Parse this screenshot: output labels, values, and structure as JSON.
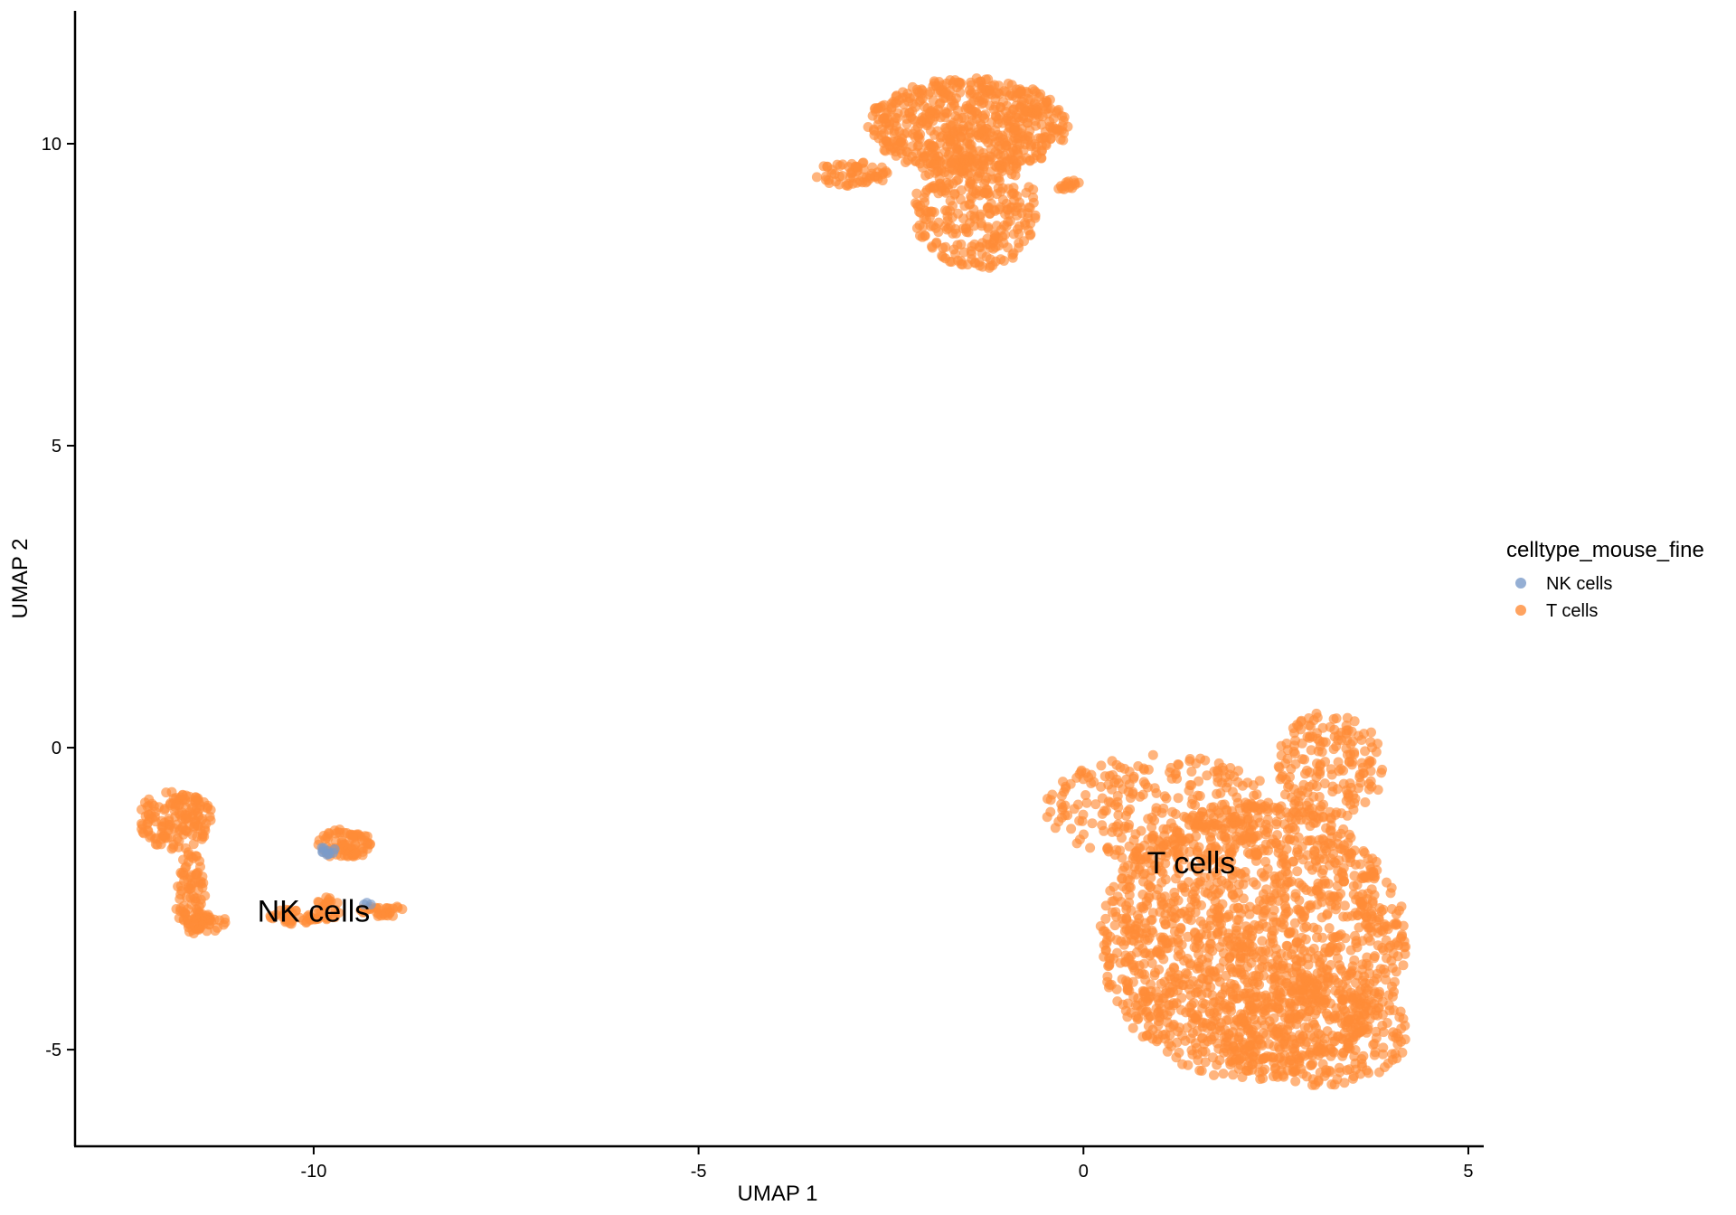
{
  "chart_data": {
    "type": "scatter",
    "title": "",
    "xlabel": "UMAP 1",
    "ylabel": "UMAP 2",
    "xlim": [
      -13.1,
      5.2
    ],
    "ylim": [
      -6.6,
      12.2
    ],
    "x_ticks": [
      -10,
      -5,
      0,
      5
    ],
    "y_ticks": [
      -5,
      0,
      5,
      10
    ],
    "x_tick_labels": [
      "-10",
      "-5",
      "0",
      "5"
    ],
    "y_tick_labels": [
      "-5",
      "0",
      "5",
      "10"
    ],
    "grid": false,
    "point_opacity": 0.65,
    "legend": {
      "title": "celltype_mouse_fine",
      "placement": "right",
      "entries": [
        {
          "label": "NK cells",
          "color": "#7b9bc9"
        },
        {
          "label": "T cells",
          "color": "#ff8c38"
        }
      ]
    },
    "cluster_labels": [
      {
        "text": "NK cells",
        "x": -10.0,
        "y": -2.7
      },
      {
        "text": "T cells",
        "x": 1.4,
        "y": -1.9
      }
    ],
    "series": [
      {
        "name": "T cells",
        "color": "#ff8c38",
        "clusters": [
          {
            "cx": 2.2,
            "cy": -3.2,
            "rx": 2.0,
            "ry": 2.3,
            "n": 1600
          },
          {
            "cx": 1.0,
            "cy": -1.0,
            "rx": 1.5,
            "ry": 0.9,
            "n": 250
          },
          {
            "cx": 3.2,
            "cy": -0.3,
            "rx": 0.7,
            "ry": 0.9,
            "n": 180
          },
          {
            "cx": 3.0,
            "cy": -4.7,
            "rx": 1.3,
            "ry": 0.9,
            "n": 300
          },
          {
            "cx": -1.5,
            "cy": 10.3,
            "rx": 1.3,
            "ry": 0.8,
            "n": 600
          },
          {
            "cx": -1.4,
            "cy": 8.9,
            "rx": 0.8,
            "ry": 1.0,
            "n": 300
          },
          {
            "cx": -3.0,
            "cy": 9.5,
            "rx": 0.5,
            "ry": 0.2,
            "n": 60
          },
          {
            "cx": -0.2,
            "cy": 9.3,
            "rx": 0.2,
            "ry": 0.1,
            "n": 15
          },
          {
            "cx": -11.8,
            "cy": -1.2,
            "rx": 0.5,
            "ry": 0.5,
            "n": 150
          },
          {
            "cx": -11.6,
            "cy": -2.4,
            "rx": 0.2,
            "ry": 0.7,
            "n": 80
          },
          {
            "cx": -11.4,
            "cy": -2.9,
            "rx": 0.3,
            "ry": 0.15,
            "n": 40
          },
          {
            "cx": -9.6,
            "cy": -1.6,
            "rx": 0.35,
            "ry": 0.25,
            "n": 80
          },
          {
            "cx": -10.3,
            "cy": -2.8,
            "rx": 0.4,
            "ry": 0.12,
            "n": 40
          },
          {
            "cx": -9.1,
            "cy": -2.7,
            "rx": 0.3,
            "ry": 0.1,
            "n": 30
          },
          {
            "cx": -9.8,
            "cy": -2.6,
            "rx": 0.15,
            "ry": 0.25,
            "n": 25
          }
        ]
      },
      {
        "name": "NK cells",
        "color": "#7b9bc9",
        "clusters": [
          {
            "cx": -9.8,
            "cy": -1.7,
            "rx": 0.12,
            "ry": 0.08,
            "n": 10
          },
          {
            "cx": -9.3,
            "cy": -2.6,
            "rx": 0.05,
            "ry": 0.05,
            "n": 3
          }
        ]
      }
    ]
  }
}
